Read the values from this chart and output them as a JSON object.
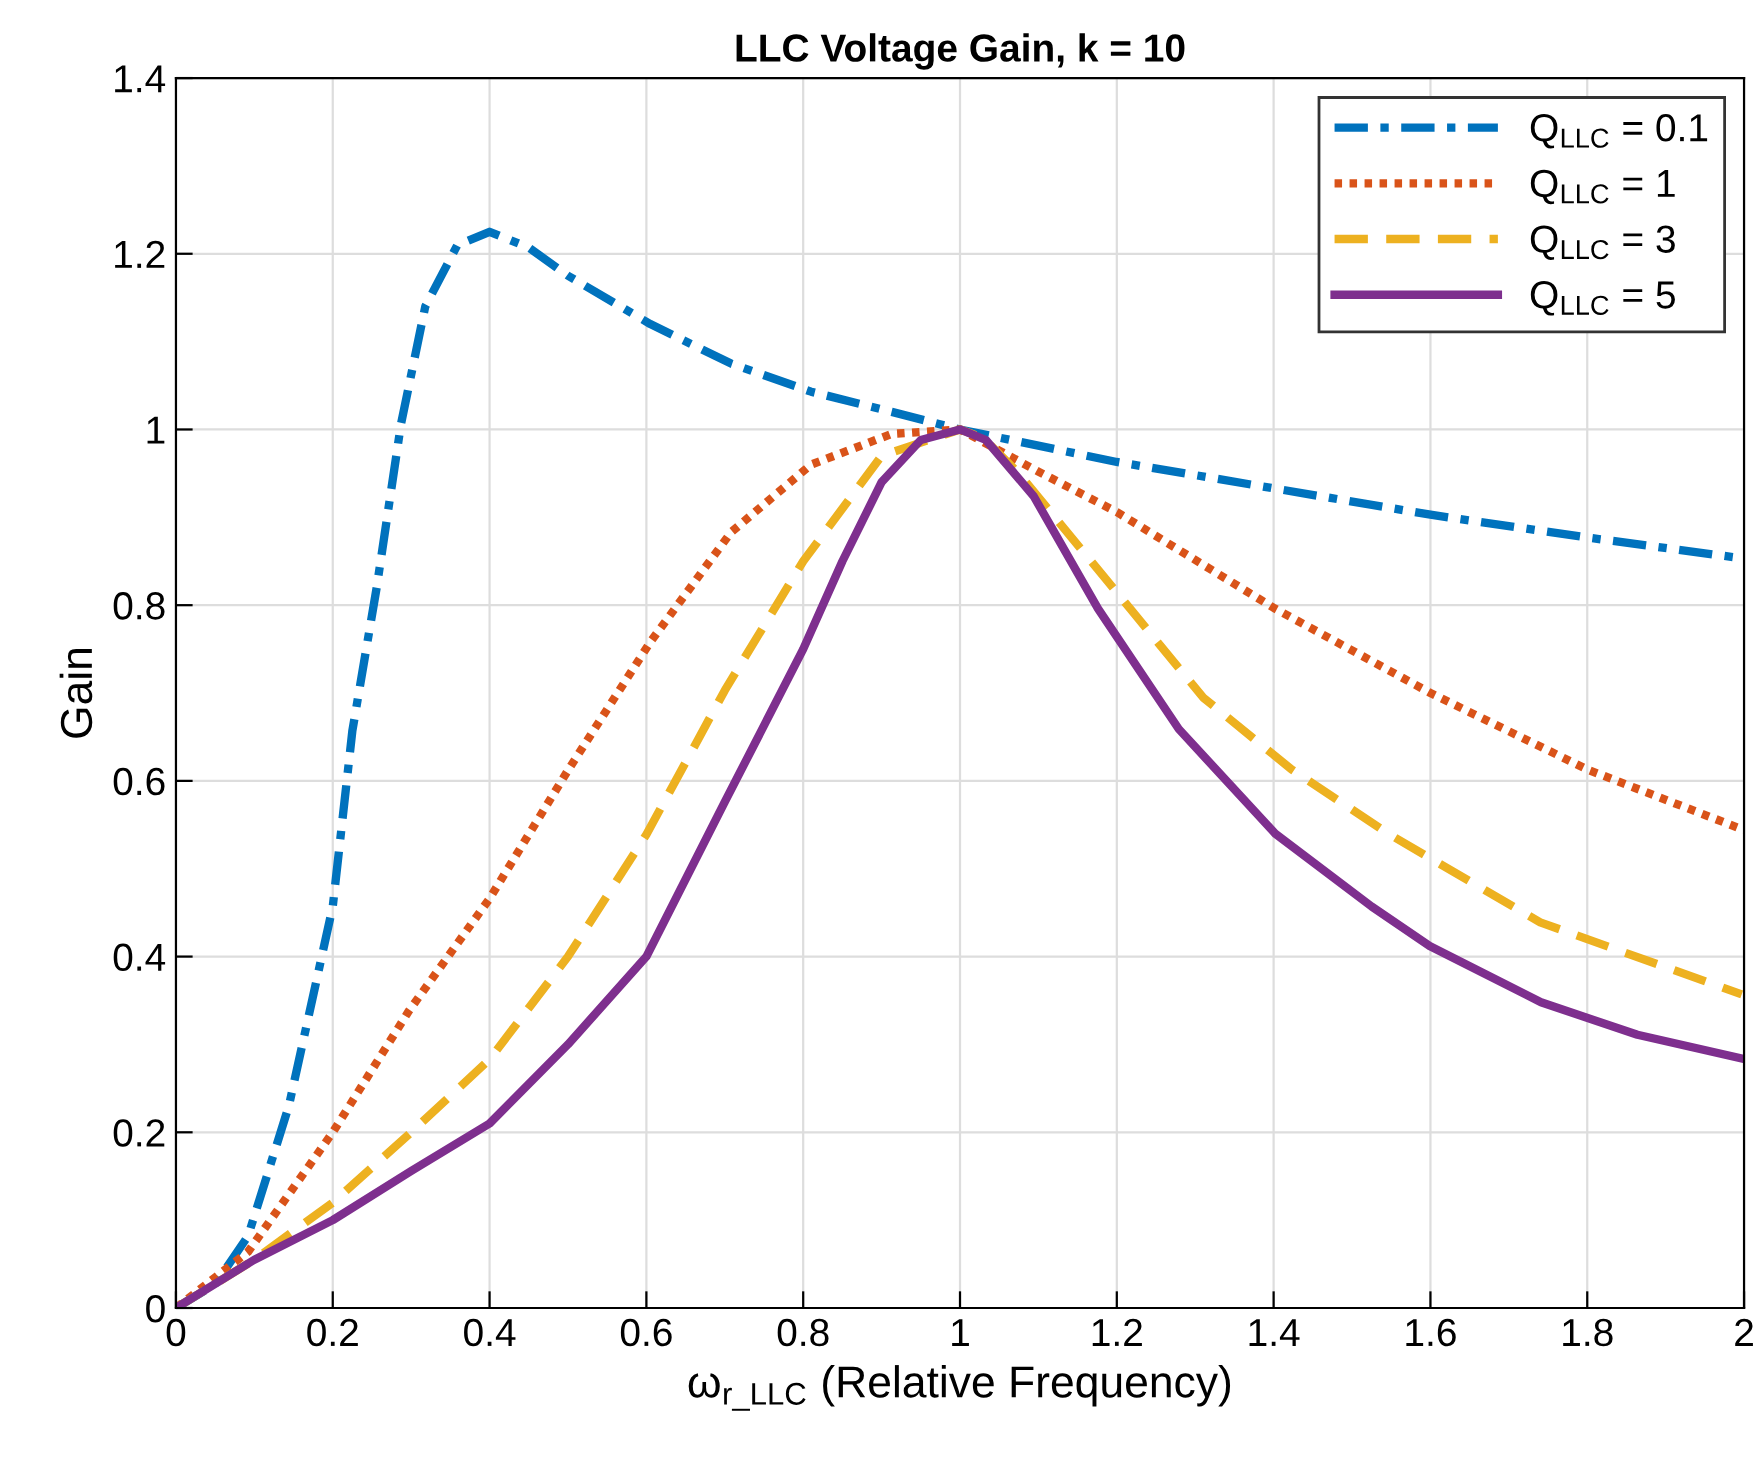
{
  "chart_data": {
    "type": "line",
    "title": "LLC Voltage Gain, k = 10",
    "xlabel": "ω$_{r_LLC}$ (Relative Frequency)",
    "ylabel": "Gain",
    "xlim": [
      0,
      2
    ],
    "ylim": [
      0,
      1.4
    ],
    "xticks": [
      0,
      0.2,
      0.4,
      0.6,
      0.8,
      1,
      1.2,
      1.4,
      1.6,
      1.8,
      2
    ],
    "yticks": [
      0,
      0.2,
      0.4,
      0.6,
      0.8,
      1,
      1.2,
      1.4
    ],
    "grid": true,
    "legend": "top right",
    "marker": "none",
    "series": [
      {
        "name": "Q$_{LLC}$ = 0.1",
        "color": "#0072bd",
        "line_style": "dashdot",
        "x": [
          0,
          0.05,
          0.092,
          0.144,
          0.2,
          0.225,
          0.256,
          0.287,
          0.318,
          0.359,
          0.4,
          0.45,
          0.5,
          0.605,
          0.708,
          0.81,
          0.913,
          1,
          1.2,
          1.4,
          1.6,
          1.8,
          2
        ],
        "values": [
          0,
          0.027,
          0.082,
          0.23,
          0.457,
          0.657,
          0.82,
          1.006,
          1.14,
          1.21,
          1.225,
          1.207,
          1.175,
          1.12,
          1.075,
          1.043,
          1.02,
          1.0,
          0.963,
          0.933,
          0.903,
          0.877,
          0.853
        ]
      },
      {
        "name": "Q$_{LLC}$ = 1",
        "color": "#d95319",
        "line_style": "dotted",
        "x": [
          0,
          0.092,
          0.2,
          0.297,
          0.4,
          0.5,
          0.605,
          0.708,
          0.81,
          0.913,
          1,
          1.1,
          1.2,
          1.4,
          1.6,
          1.8,
          2
        ],
        "values": [
          0,
          0.064,
          0.2,
          0.338,
          0.466,
          0.612,
          0.758,
          0.883,
          0.96,
          0.995,
          1.0,
          0.952,
          0.906,
          0.797,
          0.7,
          0.613,
          0.544
        ]
      },
      {
        "name": "Q$_{LLC}$ = 3",
        "color": "#edb120",
        "line_style": "dashed",
        "x": [
          0,
          0.1,
          0.2,
          0.3,
          0.4,
          0.5,
          0.6,
          0.7,
          0.8,
          0.9,
          1,
          1.03,
          1.074,
          1.217,
          1.31,
          1.423,
          1.546,
          1.74,
          1.997
        ],
        "values": [
          0,
          0.055,
          0.12,
          0.2,
          0.283,
          0.4,
          0.539,
          0.703,
          0.85,
          0.97,
          1.0,
          0.99,
          0.951,
          0.796,
          0.695,
          0.613,
          0.54,
          0.439,
          0.357
        ]
      },
      {
        "name": "Q$_{LLC}$ = 5",
        "color": "#7e2f8e",
        "line_style": "solid",
        "x": [
          0,
          0.1,
          0.2,
          0.3,
          0.4,
          0.5,
          0.6,
          0.7,
          0.8,
          0.85,
          0.9,
          0.95,
          1,
          1.033,
          1.094,
          1.176,
          1.279,
          1.402,
          1.525,
          1.599,
          1.741,
          1.864,
          1.997
        ],
        "values": [
          0,
          0.055,
          0.1,
          0.156,
          0.21,
          0.3,
          0.4,
          0.576,
          0.75,
          0.85,
          0.94,
          0.988,
          1.0,
          0.988,
          0.924,
          0.796,
          0.659,
          0.54,
          0.457,
          0.412,
          0.348,
          0.311,
          0.284
        ]
      }
    ]
  }
}
